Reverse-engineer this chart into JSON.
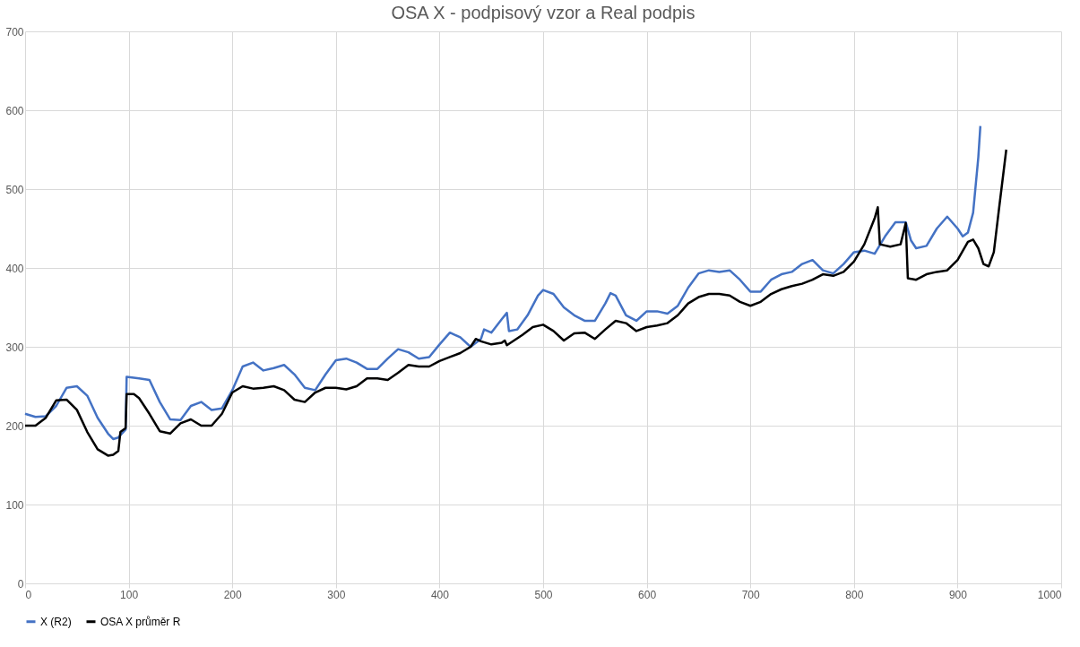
{
  "chart_data": {
    "type": "line",
    "title": "OSA X - podpisový vzor a Real podpis",
    "xlim": [
      0,
      1000
    ],
    "xticks": [
      0,
      100,
      200,
      300,
      400,
      500,
      600,
      700,
      800,
      900,
      1000
    ],
    "ylim": [
      0,
      700
    ],
    "yticks": [
      0,
      100,
      200,
      300,
      400,
      500,
      600,
      700
    ],
    "grid": true,
    "legend": "bottom",
    "marker": "none",
    "line_style": "solid",
    "series": [
      {
        "name": "X (R2)",
        "color": "#4472c4",
        "x": [
          0,
          10,
          20,
          30,
          40,
          50,
          60,
          70,
          80,
          85,
          90,
          97,
          98,
          110,
          120,
          130,
          140,
          150,
          160,
          170,
          180,
          190,
          200,
          210,
          220,
          230,
          240,
          250,
          260,
          270,
          280,
          290,
          300,
          310,
          320,
          330,
          340,
          350,
          360,
          370,
          380,
          390,
          400,
          410,
          420,
          430,
          440,
          443,
          450,
          460,
          465,
          467,
          475,
          485,
          495,
          500,
          510,
          520,
          530,
          540,
          550,
          560,
          565,
          570,
          580,
          590,
          600,
          610,
          620,
          630,
          640,
          650,
          660,
          670,
          680,
          690,
          700,
          710,
          720,
          730,
          740,
          750,
          760,
          770,
          780,
          790,
          800,
          810,
          820,
          830,
          840,
          850,
          855,
          860,
          870,
          880,
          890,
          900,
          905,
          910,
          915,
          920,
          922
        ],
        "values": [
          215,
          211,
          212,
          225,
          248,
          250,
          238,
          210,
          190,
          183,
          185,
          195,
          262,
          260,
          258,
          230,
          208,
          207,
          225,
          230,
          220,
          222,
          245,
          275,
          280,
          270,
          273,
          277,
          265,
          248,
          245,
          265,
          283,
          285,
          280,
          272,
          272,
          285,
          297,
          293,
          285,
          287,
          303,
          318,
          312,
          300,
          310,
          322,
          318,
          335,
          343,
          320,
          322,
          340,
          365,
          372,
          367,
          350,
          340,
          333,
          333,
          355,
          368,
          365,
          340,
          333,
          345,
          345,
          342,
          352,
          375,
          393,
          397,
          395,
          397,
          385,
          370,
          370,
          385,
          392,
          395,
          405,
          410,
          397,
          393,
          405,
          420,
          422,
          418,
          440,
          458,
          458,
          435,
          425,
          428,
          450,
          465,
          450,
          440,
          445,
          470,
          540,
          580
        ]
      },
      {
        "name": "OSA X průměr R",
        "color": "#000000",
        "x": [
          0,
          10,
          20,
          30,
          40,
          50,
          60,
          70,
          80,
          85,
          90,
          92,
          97,
          98,
          105,
          110,
          120,
          130,
          140,
          150,
          160,
          170,
          180,
          190,
          200,
          210,
          220,
          230,
          240,
          250,
          260,
          270,
          280,
          290,
          300,
          310,
          320,
          330,
          340,
          350,
          360,
          370,
          380,
          390,
          400,
          410,
          420,
          430,
          435,
          440,
          450,
          460,
          463,
          465,
          480,
          490,
          500,
          510,
          520,
          530,
          540,
          550,
          560,
          570,
          580,
          590,
          600,
          610,
          620,
          630,
          640,
          650,
          660,
          670,
          680,
          690,
          700,
          710,
          720,
          730,
          740,
          750,
          760,
          770,
          780,
          790,
          800,
          810,
          820,
          823,
          825,
          835,
          845,
          850,
          852,
          860,
          870,
          880,
          890,
          900,
          910,
          915,
          920,
          925,
          930,
          935,
          940,
          947
        ],
        "values": [
          200,
          200,
          210,
          232,
          233,
          220,
          192,
          170,
          162,
          163,
          168,
          192,
          197,
          240,
          240,
          235,
          215,
          193,
          190,
          203,
          208,
          200,
          200,
          215,
          242,
          250,
          247,
          248,
          250,
          245,
          233,
          230,
          242,
          248,
          248,
          246,
          250,
          260,
          260,
          258,
          267,
          277,
          275,
          275,
          282,
          287,
          292,
          300,
          310,
          307,
          303,
          305,
          308,
          302,
          315,
          325,
          328,
          320,
          308,
          317,
          318,
          310,
          322,
          333,
          330,
          320,
          325,
          327,
          330,
          340,
          355,
          363,
          367,
          367,
          365,
          357,
          352,
          357,
          367,
          373,
          377,
          380,
          385,
          392,
          390,
          395,
          408,
          430,
          463,
          477,
          430,
          427,
          430,
          457,
          387,
          385,
          392,
          395,
          397,
          410,
          433,
          436,
          425,
          405,
          402,
          420,
          475,
          550
        ]
      }
    ]
  }
}
